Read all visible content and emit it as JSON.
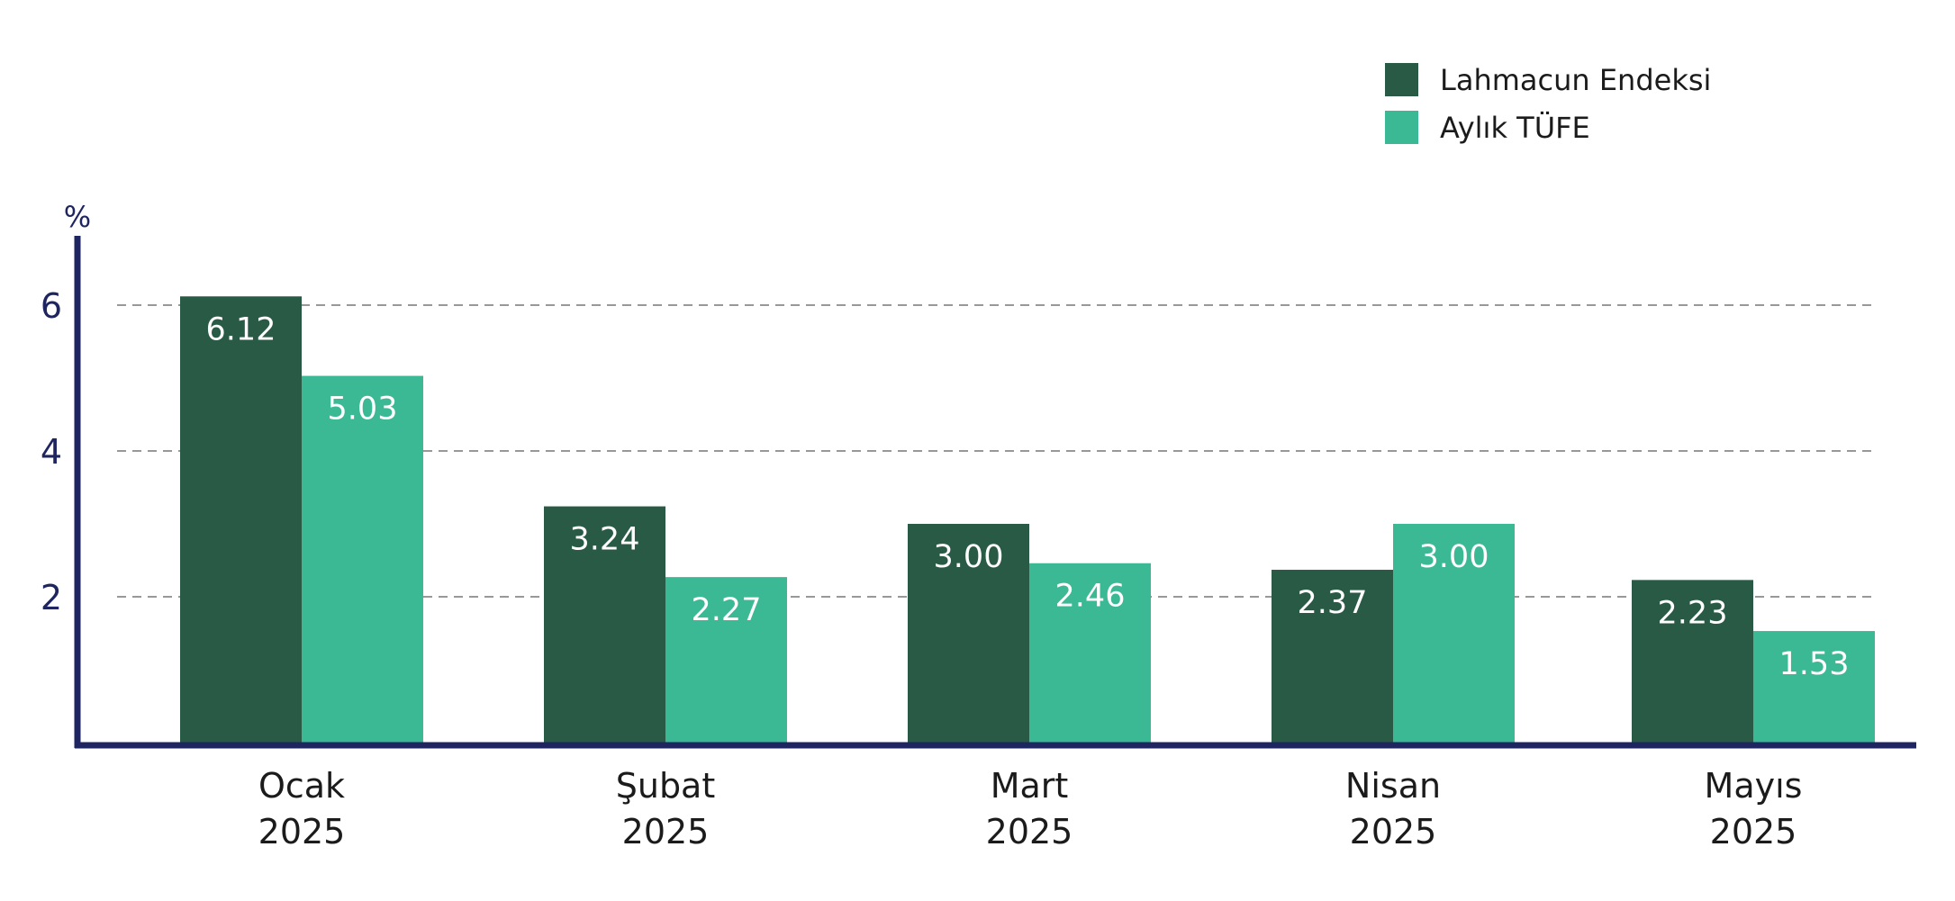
{
  "chart_data": {
    "type": "bar",
    "categories": [
      [
        "Ocak",
        "2025"
      ],
      [
        "Şubat",
        "2025"
      ],
      [
        "Mart",
        "2025"
      ],
      [
        "Nisan",
        "2025"
      ],
      [
        "Mayıs",
        "2025"
      ]
    ],
    "series": [
      {
        "name": "Lahmacun Endeksi",
        "values": [
          6.12,
          3.24,
          3.0,
          2.37,
          2.23
        ],
        "labels": [
          "6.12",
          "3.24",
          "3.00",
          "2.37",
          "2.23"
        ],
        "color": "#285a45"
      },
      {
        "name": "Aylık TÜFE",
        "values": [
          5.03,
          2.27,
          2.46,
          3.0,
          1.53
        ],
        "labels": [
          "5.03",
          "2.27",
          "2.46",
          "3.00",
          "1.53"
        ],
        "color": "#3bb894"
      }
    ],
    "y_unit": "%",
    "y_ticks": [
      2,
      4,
      6
    ],
    "ylim": [
      0,
      7
    ],
    "grid": "horizontal dashed",
    "legend_position": "top-right",
    "axis_color": "#1e2560"
  }
}
